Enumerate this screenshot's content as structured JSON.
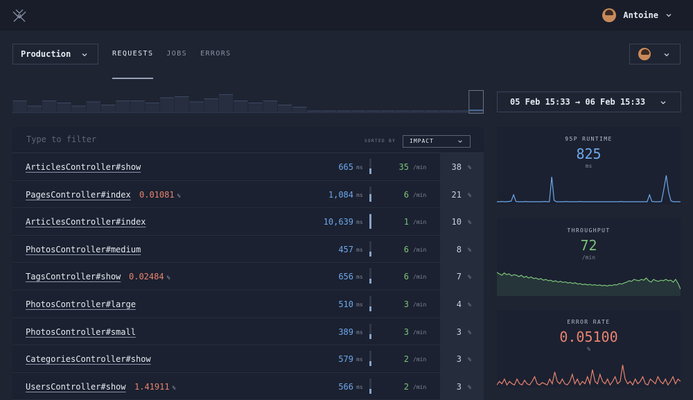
{
  "topbar": {
    "user_name": "Antoine"
  },
  "environment": {
    "selected": "Production"
  },
  "tabs": [
    {
      "label": "REQUESTS",
      "active": true
    },
    {
      "label": "JOBS",
      "active": false
    },
    {
      "label": "ERRORS",
      "active": false
    }
  ],
  "date_range": {
    "label": "05 Feb 15:33 → 06 Feb 15:33"
  },
  "histogram": {
    "values": [
      0.55,
      0.3,
      0.55,
      0.45,
      0.3,
      0.5,
      0.35,
      0.55,
      0.55,
      0.45,
      0.7,
      0.75,
      0.5,
      0.65,
      0.85,
      0.55,
      0.45,
      0.55,
      0.35,
      0.25,
      0.05,
      0.05,
      0.05,
      0.05,
      0.05,
      0.05,
      0.05,
      0.05,
      0.05,
      0.05,
      0.05,
      0.1
    ]
  },
  "table": {
    "filter_placeholder": "Type to filter",
    "sorted_by_label": "SORTED BY",
    "sort_value": "IMPACT",
    "runtime_unit": "ms",
    "throughput_unit": "/min",
    "impact_unit": "%",
    "error_unit": "%",
    "rows": [
      {
        "name": "ArticlesController#show",
        "error_rate": "",
        "runtime": "665",
        "runtime_fill": 0.35,
        "throughput": "35",
        "impact": "38"
      },
      {
        "name": "PagesController#index",
        "error_rate": "0.01081",
        "runtime": "1,084",
        "runtime_fill": 0.5,
        "throughput": "6",
        "impact": "21"
      },
      {
        "name": "ArticlesController#index",
        "error_rate": "",
        "runtime": "10,639",
        "runtime_fill": 0.95,
        "throughput": "1",
        "impact": "10"
      },
      {
        "name": "PhotosController#medium",
        "error_rate": "",
        "runtime": "457",
        "runtime_fill": 0.3,
        "throughput": "6",
        "impact": "8"
      },
      {
        "name": "TagsController#show",
        "error_rate": "0.02484",
        "runtime": "656",
        "runtime_fill": 0.35,
        "throughput": "6",
        "impact": "7"
      },
      {
        "name": "PhotosController#large",
        "error_rate": "",
        "runtime": "510",
        "runtime_fill": 0.32,
        "throughput": "3",
        "impact": "4"
      },
      {
        "name": "PhotosController#small",
        "error_rate": "",
        "runtime": "389",
        "runtime_fill": 0.28,
        "throughput": "3",
        "impact": "3"
      },
      {
        "name": "CategoriesController#show",
        "error_rate": "",
        "runtime": "579",
        "runtime_fill": 0.33,
        "throughput": "2",
        "impact": "3"
      },
      {
        "name": "UsersController#show",
        "error_rate": "1.41911",
        "runtime": "566",
        "runtime_fill": 0.33,
        "throughput": "2",
        "impact": "3"
      }
    ]
  },
  "metrics": {
    "runtime": {
      "label": "95P RUNTIME",
      "value": "825",
      "unit": "ms",
      "color": "#6ea8ec",
      "series": [
        0.05,
        0.05,
        0.06,
        0.05,
        0.05,
        0.06,
        0.07,
        0.3,
        0.06,
        0.05,
        0.05,
        0.05,
        0.06,
        0.05,
        0.05,
        0.05,
        0.05,
        0.05,
        0.05,
        0.05,
        0.06,
        0.05,
        0.05,
        0.95,
        0.1,
        0.05,
        0.05,
        0.05,
        0.05,
        0.06,
        0.05,
        0.05,
        0.05,
        0.05,
        0.05,
        0.06,
        0.05,
        0.05,
        0.05,
        0.05,
        0.05,
        0.05,
        0.05,
        0.05,
        0.05,
        0.05,
        0.05,
        0.05,
        0.05,
        0.05,
        0.05,
        0.05,
        0.06,
        0.05,
        0.05,
        0.05,
        0.05,
        0.05,
        0.05,
        0.05,
        0.05,
        0.05,
        0.05,
        0.05,
        0.3,
        0.06,
        0.05,
        0.05,
        0.05,
        0.06,
        0.5,
        1.0,
        0.4,
        0.08,
        0.05,
        0.05,
        0.05,
        0.05
      ]
    },
    "throughput": {
      "label": "THROUGHPUT",
      "value": "72",
      "unit": "/min",
      "color": "#7cc47a",
      "series": [
        0.8,
        0.75,
        0.7,
        0.78,
        0.72,
        0.75,
        0.68,
        0.72,
        0.7,
        0.65,
        0.7,
        0.62,
        0.66,
        0.6,
        0.64,
        0.58,
        0.6,
        0.55,
        0.58,
        0.52,
        0.55,
        0.5,
        0.52,
        0.47,
        0.5,
        0.45,
        0.48,
        0.44,
        0.46,
        0.42,
        0.44,
        0.4,
        0.43,
        0.38,
        0.4,
        0.36,
        0.38,
        0.35,
        0.37,
        0.34,
        0.36,
        0.33,
        0.35,
        0.32,
        0.34,
        0.31,
        0.34,
        0.33,
        0.36,
        0.35,
        0.4,
        0.38,
        0.42,
        0.45,
        0.5,
        0.48,
        0.55,
        0.52,
        0.5,
        0.55,
        0.52,
        0.6,
        0.5,
        0.45,
        0.55,
        0.5,
        0.48,
        0.52,
        0.5,
        0.55,
        0.5,
        0.52,
        0.45,
        0.55,
        0.4,
        0.2
      ]
    },
    "error_rate": {
      "label": "ERROR RATE",
      "value": "0.05100",
      "unit": "%",
      "color": "#e98370",
      "series": [
        0.05,
        0.2,
        0.1,
        0.3,
        0.05,
        0.2,
        0.1,
        0.05,
        0.3,
        0.1,
        0.05,
        0.25,
        0.1,
        0.05,
        0.2,
        0.4,
        0.1,
        0.05,
        0.15,
        0.1,
        0.05,
        0.3,
        0.1,
        0.6,
        0.2,
        0.1,
        0.3,
        0.1,
        0.05,
        0.2,
        0.5,
        0.1,
        0.3,
        0.05,
        0.2,
        0.1,
        0.4,
        0.1,
        0.7,
        0.2,
        0.1,
        0.5,
        0.2,
        0.1,
        0.3,
        0.05,
        0.2,
        0.4,
        0.1,
        0.2,
        0.9,
        0.3,
        0.1,
        0.2,
        0.05,
        0.3,
        0.1,
        0.2,
        0.4,
        0.1,
        0.05,
        0.3,
        0.2,
        0.1,
        0.4,
        0.2,
        0.1,
        0.3,
        0.05,
        0.2,
        0.4,
        0.1,
        0.3,
        0.2
      ]
    }
  }
}
